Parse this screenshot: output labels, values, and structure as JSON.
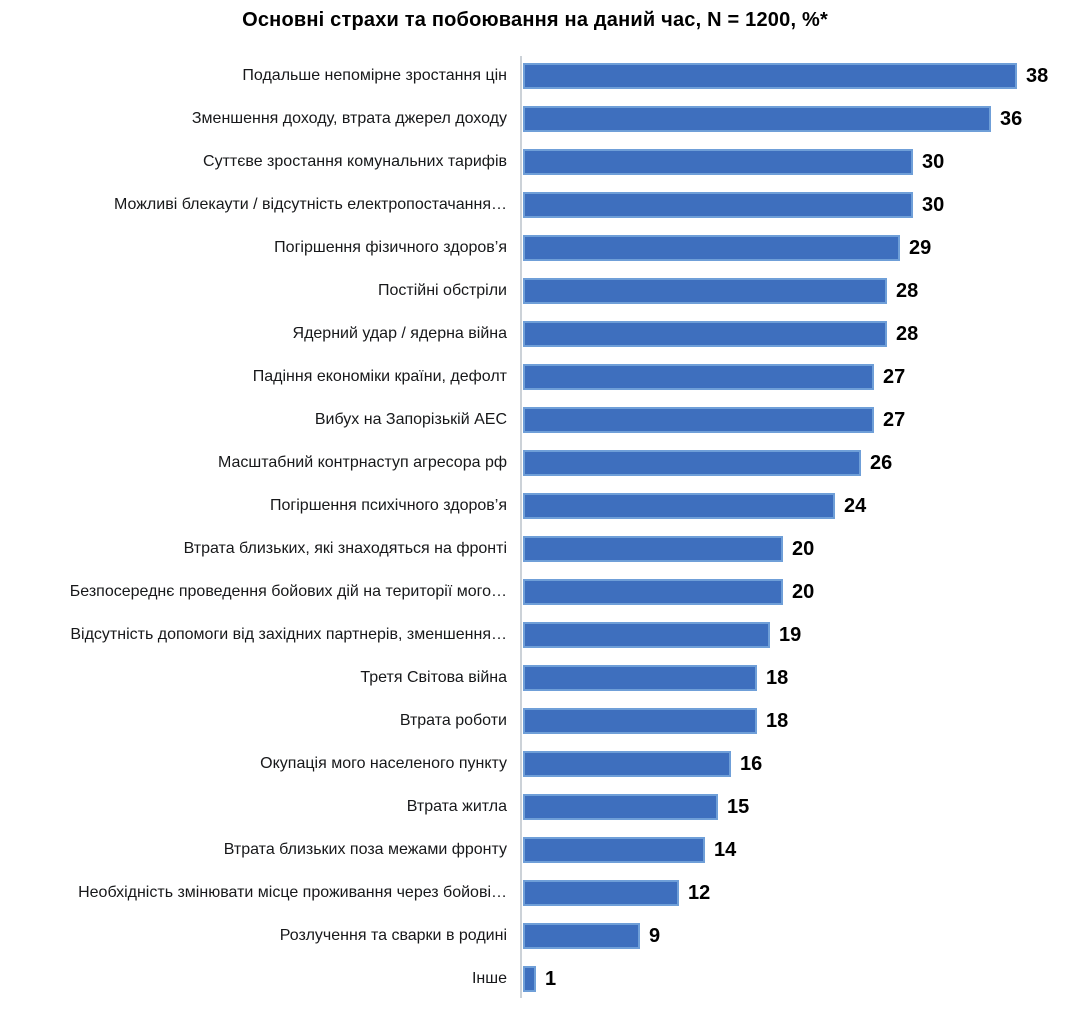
{
  "chart_data": {
    "type": "bar",
    "orientation": "horizontal",
    "title": "Основні страхи та побоювання на даний час, N = 1200, %*",
    "xlabel": "",
    "ylabel": "",
    "xlim": [
      0,
      40
    ],
    "grid": false,
    "legend": false,
    "data_labels": "outside-end",
    "bar_fill_color": "#3E6FBE",
    "bar_border_color": "#6F9FD8",
    "axis_line_color": "#CCD2D8",
    "categories": [
      "Подальше непомірне зростання цін",
      "Зменшення доходу, втрата джерел доходу",
      "Суттєве зростання комунальних тарифів",
      "Можливі блекаути / відсутність електропостачання…",
      "Погіршення фізичного здоров’я",
      "Постійні обстріли",
      "Ядерний удар / ядерна війна",
      "Падіння економіки країни, дефолт",
      "Вибух на Запорізькій АЕС",
      "Масштабний контрнаступ агресора рф",
      "Погіршення психічного здоров’я",
      "Втрата близьких, які знаходяться на фронті",
      "Безпосереднє проведення бойових дій на території мого…",
      "Відсутність допомоги від західних партнерів, зменшення…",
      "Третя Світова війна",
      "Втрата роботи",
      "Окупація мого населеного пункту",
      "Втрата житла",
      "Втрата близьких поза межами фронту",
      "Необхідність змінювати місце проживання через бойові…",
      "Розлучення та сварки в родині",
      "Інше"
    ],
    "values": [
      38,
      36,
      30,
      30,
      29,
      28,
      28,
      27,
      27,
      26,
      24,
      20,
      20,
      19,
      18,
      18,
      16,
      15,
      14,
      12,
      9,
      1
    ]
  }
}
